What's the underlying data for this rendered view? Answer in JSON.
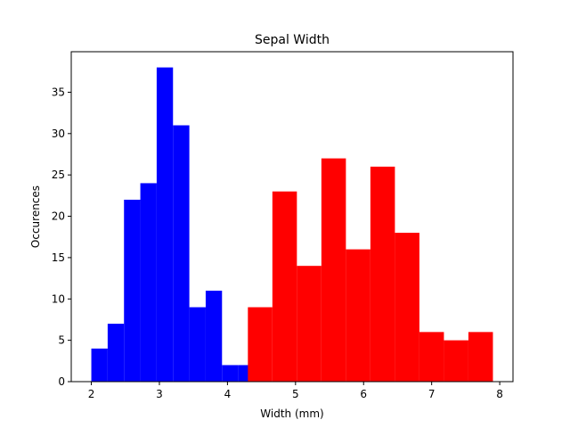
{
  "chart_data": {
    "type": "bar",
    "title": "Sepal Width",
    "xlabel": "Width (mm)",
    "ylabel": "Occurences",
    "xlim": [
      1.705,
      8.195
    ],
    "ylim": [
      0,
      39.9
    ],
    "grid": false,
    "xticks": [
      2,
      3,
      4,
      5,
      6,
      7,
      8
    ],
    "yticks": [
      0,
      5,
      10,
      15,
      20,
      25,
      30,
      35
    ],
    "series": [
      {
        "color": "#0000ff",
        "bins": [
          {
            "x0": 2.0,
            "x1": 2.24,
            "value": 4
          },
          {
            "x0": 2.24,
            "x1": 2.48,
            "value": 7
          },
          {
            "x0": 2.48,
            "x1": 2.72,
            "value": 22
          },
          {
            "x0": 2.72,
            "x1": 2.96,
            "value": 24
          },
          {
            "x0": 2.96,
            "x1": 3.2,
            "value": 38
          },
          {
            "x0": 3.2,
            "x1": 3.44,
            "value": 31
          },
          {
            "x0": 3.44,
            "x1": 3.68,
            "value": 9
          },
          {
            "x0": 3.68,
            "x1": 3.92,
            "value": 11
          },
          {
            "x0": 3.92,
            "x1": 4.16,
            "value": 2
          },
          {
            "x0": 4.16,
            "x1": 4.4,
            "value": 2
          }
        ]
      },
      {
        "color": "#ff0000",
        "bins": [
          {
            "x0": 4.3,
            "x1": 4.66,
            "value": 9
          },
          {
            "x0": 4.66,
            "x1": 5.02,
            "value": 23
          },
          {
            "x0": 5.02,
            "x1": 5.38,
            "value": 14
          },
          {
            "x0": 5.38,
            "x1": 5.74,
            "value": 27
          },
          {
            "x0": 5.74,
            "x1": 6.1,
            "value": 16
          },
          {
            "x0": 6.1,
            "x1": 6.46,
            "value": 26
          },
          {
            "x0": 6.46,
            "x1": 6.82,
            "value": 18
          },
          {
            "x0": 6.82,
            "x1": 7.18,
            "value": 6
          },
          {
            "x0": 7.18,
            "x1": 7.54,
            "value": 5
          },
          {
            "x0": 7.54,
            "x1": 7.9,
            "value": 6
          }
        ]
      }
    ]
  }
}
